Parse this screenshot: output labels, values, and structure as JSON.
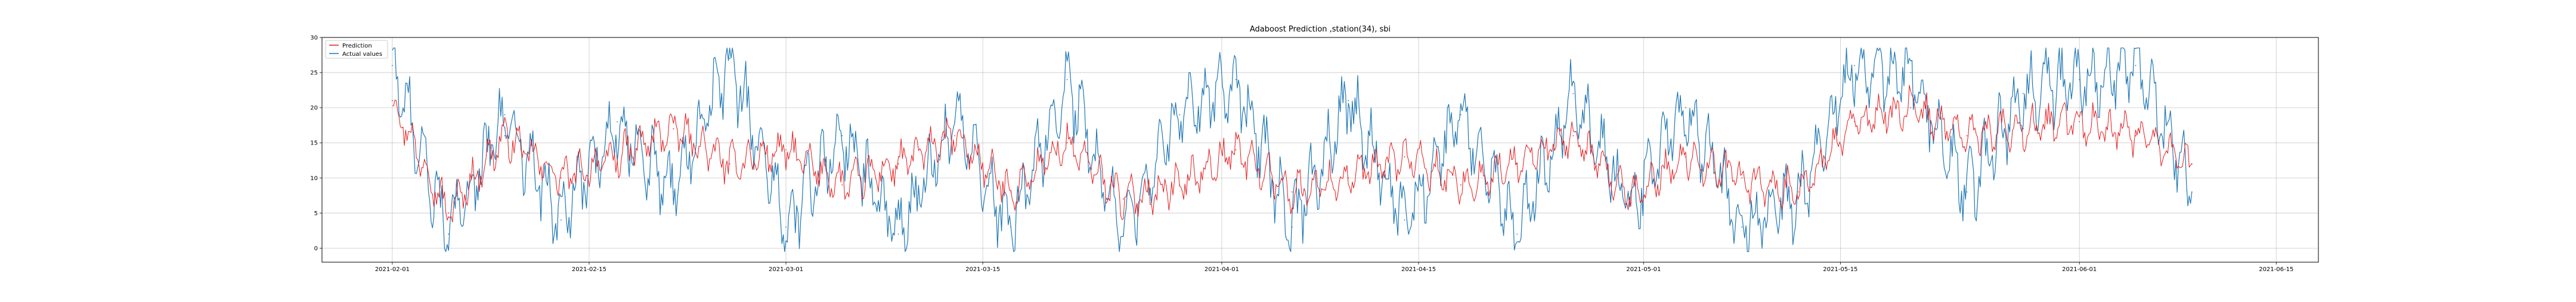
{
  "chart_data": {
    "type": "line",
    "title": "Adaboost Prediction ,station(34), sbi",
    "xlabel": "",
    "ylabel": "",
    "x_type": "date",
    "xlim": [
      "2021-01-27",
      "2021-06-18"
    ],
    "ylim": [
      -2,
      30
    ],
    "grid": true,
    "legend_position": "top-left",
    "x_ticks": [
      "2021-02-01",
      "2021-02-15",
      "2021-03-01",
      "2021-03-15",
      "2021-04-01",
      "2021-04-15",
      "2021-05-01",
      "2021-05-15",
      "2021-06-01",
      "2021-06-15"
    ],
    "y_ticks": [
      0,
      5,
      10,
      15,
      20,
      25,
      30
    ],
    "x": [
      "2021-02-01",
      "2021-02-05",
      "2021-02-09",
      "2021-02-13",
      "2021-02-17",
      "2021-02-21",
      "2021-02-25",
      "2021-03-01",
      "2021-03-05",
      "2021-03-09",
      "2021-03-13",
      "2021-03-17",
      "2021-03-21",
      "2021-03-25",
      "2021-03-29",
      "2021-04-02",
      "2021-04-06",
      "2021-04-10",
      "2021-04-14",
      "2021-04-18",
      "2021-04-22",
      "2021-04-26",
      "2021-04-30",
      "2021-05-04",
      "2021-05-08",
      "2021-05-12",
      "2021-05-16",
      "2021-05-20",
      "2021-05-24",
      "2021-05-28",
      "2021-06-01",
      "2021-06-05",
      "2021-06-09"
    ],
    "series": [
      {
        "name": "Prediction",
        "color": "#e41a1c",
        "values": [
          21,
          5,
          16,
          10,
          13,
          17,
          12,
          14,
          9,
          12,
          16,
          8,
          15,
          7,
          9,
          14,
          8,
          10,
          13,
          9,
          12,
          16,
          7,
          13,
          10,
          8,
          18,
          20,
          16,
          17,
          18,
          16,
          12
        ]
      },
      {
        "name": "Actual values",
        "color": "#1f77b4",
        "values": [
          26,
          2,
          19,
          4,
          18,
          8,
          27,
          3,
          16,
          2,
          18,
          3,
          24,
          2,
          19,
          24,
          3,
          21,
          4,
          19,
          2,
          22,
          6,
          20,
          3,
          7,
          26,
          25,
          8,
          22,
          24,
          26,
          8
        ]
      }
    ]
  }
}
